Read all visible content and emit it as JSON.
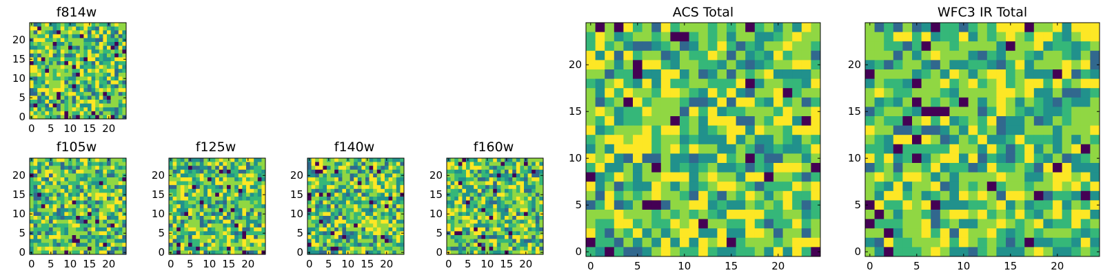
{
  "chart_data": [
    {
      "type": "heatmap",
      "title": "f814w",
      "grid_size": 25,
      "seed": 814,
      "colormap": [
        "#440154",
        "#31688e",
        "#21918c",
        "#35b779",
        "#90d743",
        "#fde725"
      ],
      "x_ticks": [
        "0",
        "5",
        "10",
        "15",
        "20"
      ],
      "y_ticks": [
        "0",
        "5",
        "10",
        "15",
        "20"
      ]
    },
    {
      "type": "heatmap",
      "title": "f105w",
      "grid_size": 25,
      "seed": 105,
      "colormap": [
        "#440154",
        "#31688e",
        "#21918c",
        "#35b779",
        "#90d743",
        "#fde725"
      ],
      "x_ticks": [
        "0",
        "5",
        "10",
        "15",
        "20"
      ],
      "y_ticks": [
        "0",
        "5",
        "10",
        "15",
        "20"
      ]
    },
    {
      "type": "heatmap",
      "title": "f125w",
      "grid_size": 25,
      "seed": 125,
      "colormap": [
        "#440154",
        "#31688e",
        "#21918c",
        "#35b779",
        "#90d743",
        "#fde725"
      ],
      "x_ticks": [
        "0",
        "5",
        "10",
        "15",
        "20"
      ],
      "y_ticks": [
        "0",
        "5",
        "10",
        "15",
        "20"
      ]
    },
    {
      "type": "heatmap",
      "title": "f140w",
      "grid_size": 25,
      "seed": 140,
      "colormap": [
        "#440154",
        "#31688e",
        "#21918c",
        "#35b779",
        "#90d743",
        "#fde725"
      ],
      "x_ticks": [
        "0",
        "5",
        "10",
        "15",
        "20"
      ],
      "y_ticks": [
        "0",
        "5",
        "10",
        "15",
        "20"
      ]
    },
    {
      "type": "heatmap",
      "title": "f160w",
      "grid_size": 25,
      "seed": 160,
      "colormap": [
        "#440154",
        "#31688e",
        "#21918c",
        "#35b779",
        "#90d743",
        "#fde725"
      ],
      "x_ticks": [
        "0",
        "5",
        "10",
        "15",
        "20"
      ],
      "y_ticks": [
        "0",
        "5",
        "10",
        "15",
        "20"
      ]
    },
    {
      "type": "heatmap",
      "title": "ACS Total",
      "grid_size": 25,
      "seed": 901,
      "colormap": [
        "#440154",
        "#31688e",
        "#21918c",
        "#35b779",
        "#90d743",
        "#fde725"
      ],
      "x_ticks": [
        "0",
        "5",
        "10",
        "15",
        "20"
      ],
      "y_ticks": [
        "0",
        "5",
        "10",
        "15",
        "20"
      ]
    },
    {
      "type": "heatmap",
      "title": "WFC3 IR Total",
      "grid_size": 25,
      "seed": 902,
      "colormap": [
        "#440154",
        "#31688e",
        "#21918c",
        "#35b779",
        "#90d743",
        "#fde725"
      ],
      "x_ticks": [
        "0",
        "5",
        "10",
        "15",
        "20"
      ],
      "y_ticks": [
        "0",
        "5",
        "10",
        "15",
        "20"
      ]
    }
  ]
}
